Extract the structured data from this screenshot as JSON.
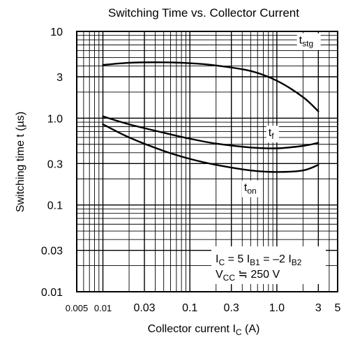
{
  "chart_data": {
    "type": "line",
    "title": "Switching Time vs. Collector Current",
    "xlabel": {
      "main": "Collector current",
      "symbol": "I",
      "sub": "C",
      "unit": "(A)"
    },
    "ylabel": "Switching time  t  (µs)",
    "x_scale": "log",
    "y_scale": "log",
    "xlim": [
      0.005,
      5
    ],
    "ylim": [
      0.01,
      10
    ],
    "grid": true,
    "x_ticks": [
      {
        "v": 0.005,
        "label": "0.005",
        "size": "small"
      },
      {
        "v": 0.01,
        "label": "0.01",
        "size": "small"
      },
      {
        "v": 0.03,
        "label": "0.03",
        "size": "normal"
      },
      {
        "v": 0.1,
        "label": "0.1",
        "size": "normal"
      },
      {
        "v": 0.3,
        "label": "0.3",
        "size": "normal"
      },
      {
        "v": 1.0,
        "label": "1.0",
        "size": "normal"
      },
      {
        "v": 3,
        "label": "3",
        "size": "normal"
      },
      {
        "v": 5,
        "label": "5",
        "size": "normal"
      }
    ],
    "y_ticks": [
      {
        "v": 10,
        "label": "10"
      },
      {
        "v": 3,
        "label": "3"
      },
      {
        "v": 1.0,
        "label": "1.0"
      },
      {
        "v": 0.3,
        "label": "0.3"
      },
      {
        "v": 0.1,
        "label": "0.1"
      },
      {
        "v": 0.03,
        "label": "0.03"
      },
      {
        "v": 0.01,
        "label": "0.01"
      }
    ],
    "series": [
      {
        "label_main": "t",
        "label_sub": "stg",
        "x": [
          0.01,
          0.02,
          0.05,
          0.1,
          0.2,
          0.5,
          1.0,
          2.0,
          3.0
        ],
        "y": [
          4.1,
          4.35,
          4.4,
          4.3,
          4.05,
          3.5,
          2.7,
          1.75,
          1.2
        ]
      },
      {
        "label_main": "t",
        "label_sub": "f",
        "x": [
          0.01,
          0.02,
          0.05,
          0.1,
          0.2,
          0.5,
          1.0,
          2.0,
          3.0
        ],
        "y": [
          1.05,
          0.85,
          0.68,
          0.58,
          0.51,
          0.46,
          0.45,
          0.48,
          0.52
        ]
      },
      {
        "label_main": "t",
        "label_sub": "on",
        "x": [
          0.01,
          0.02,
          0.05,
          0.1,
          0.2,
          0.5,
          1.0,
          2.0,
          3.0
        ],
        "y": [
          0.85,
          0.6,
          0.42,
          0.34,
          0.29,
          0.25,
          0.24,
          0.25,
          0.29
        ]
      }
    ],
    "annotation": {
      "line1": {
        "a": "I",
        "a_sub": "C",
        "b": " = 5 I",
        "b_sub": "B1",
        "c": " = –2 I",
        "c_sub": "B2"
      },
      "line2": {
        "a": "V",
        "a_sub": "CC",
        "b": " ≒ 250 V"
      }
    }
  }
}
